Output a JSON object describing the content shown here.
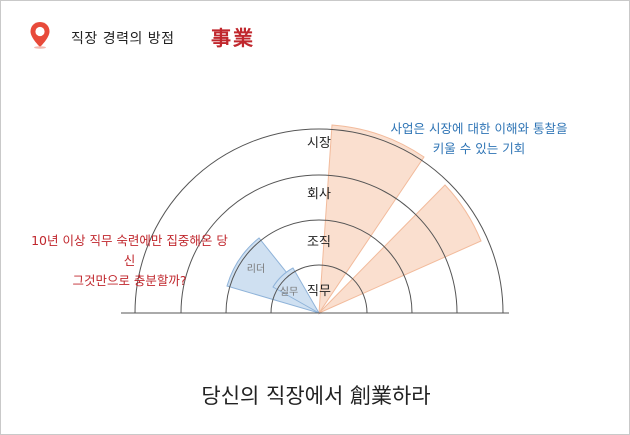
{
  "header": {
    "title": "직장 경력의 방점",
    "hanja": "事業"
  },
  "diagram": {
    "rings": [
      "시장",
      "회사",
      "조직",
      "직무"
    ],
    "inner_segment_labels": [
      "실무",
      "리더"
    ],
    "colors": {
      "blue_fill": "#cfe0f1",
      "blue_stroke": "#8fb3d9",
      "orange_fill": "#fadfcf",
      "orange_stroke": "#f2bb9c",
      "ring_stroke": "#555555",
      "pin_red": "#e84a3a"
    }
  },
  "callouts": {
    "left_line1": "10년 이상 직무 숙련에만 집중해온 당신",
    "left_line2": "그것만으로 충분할까?",
    "right_line1": "사업은 시장에 대한 이해와 통찰을",
    "right_line2": "키울 수 있는 기회"
  },
  "footer": {
    "title": "당신의 직장에서 創業하라"
  }
}
